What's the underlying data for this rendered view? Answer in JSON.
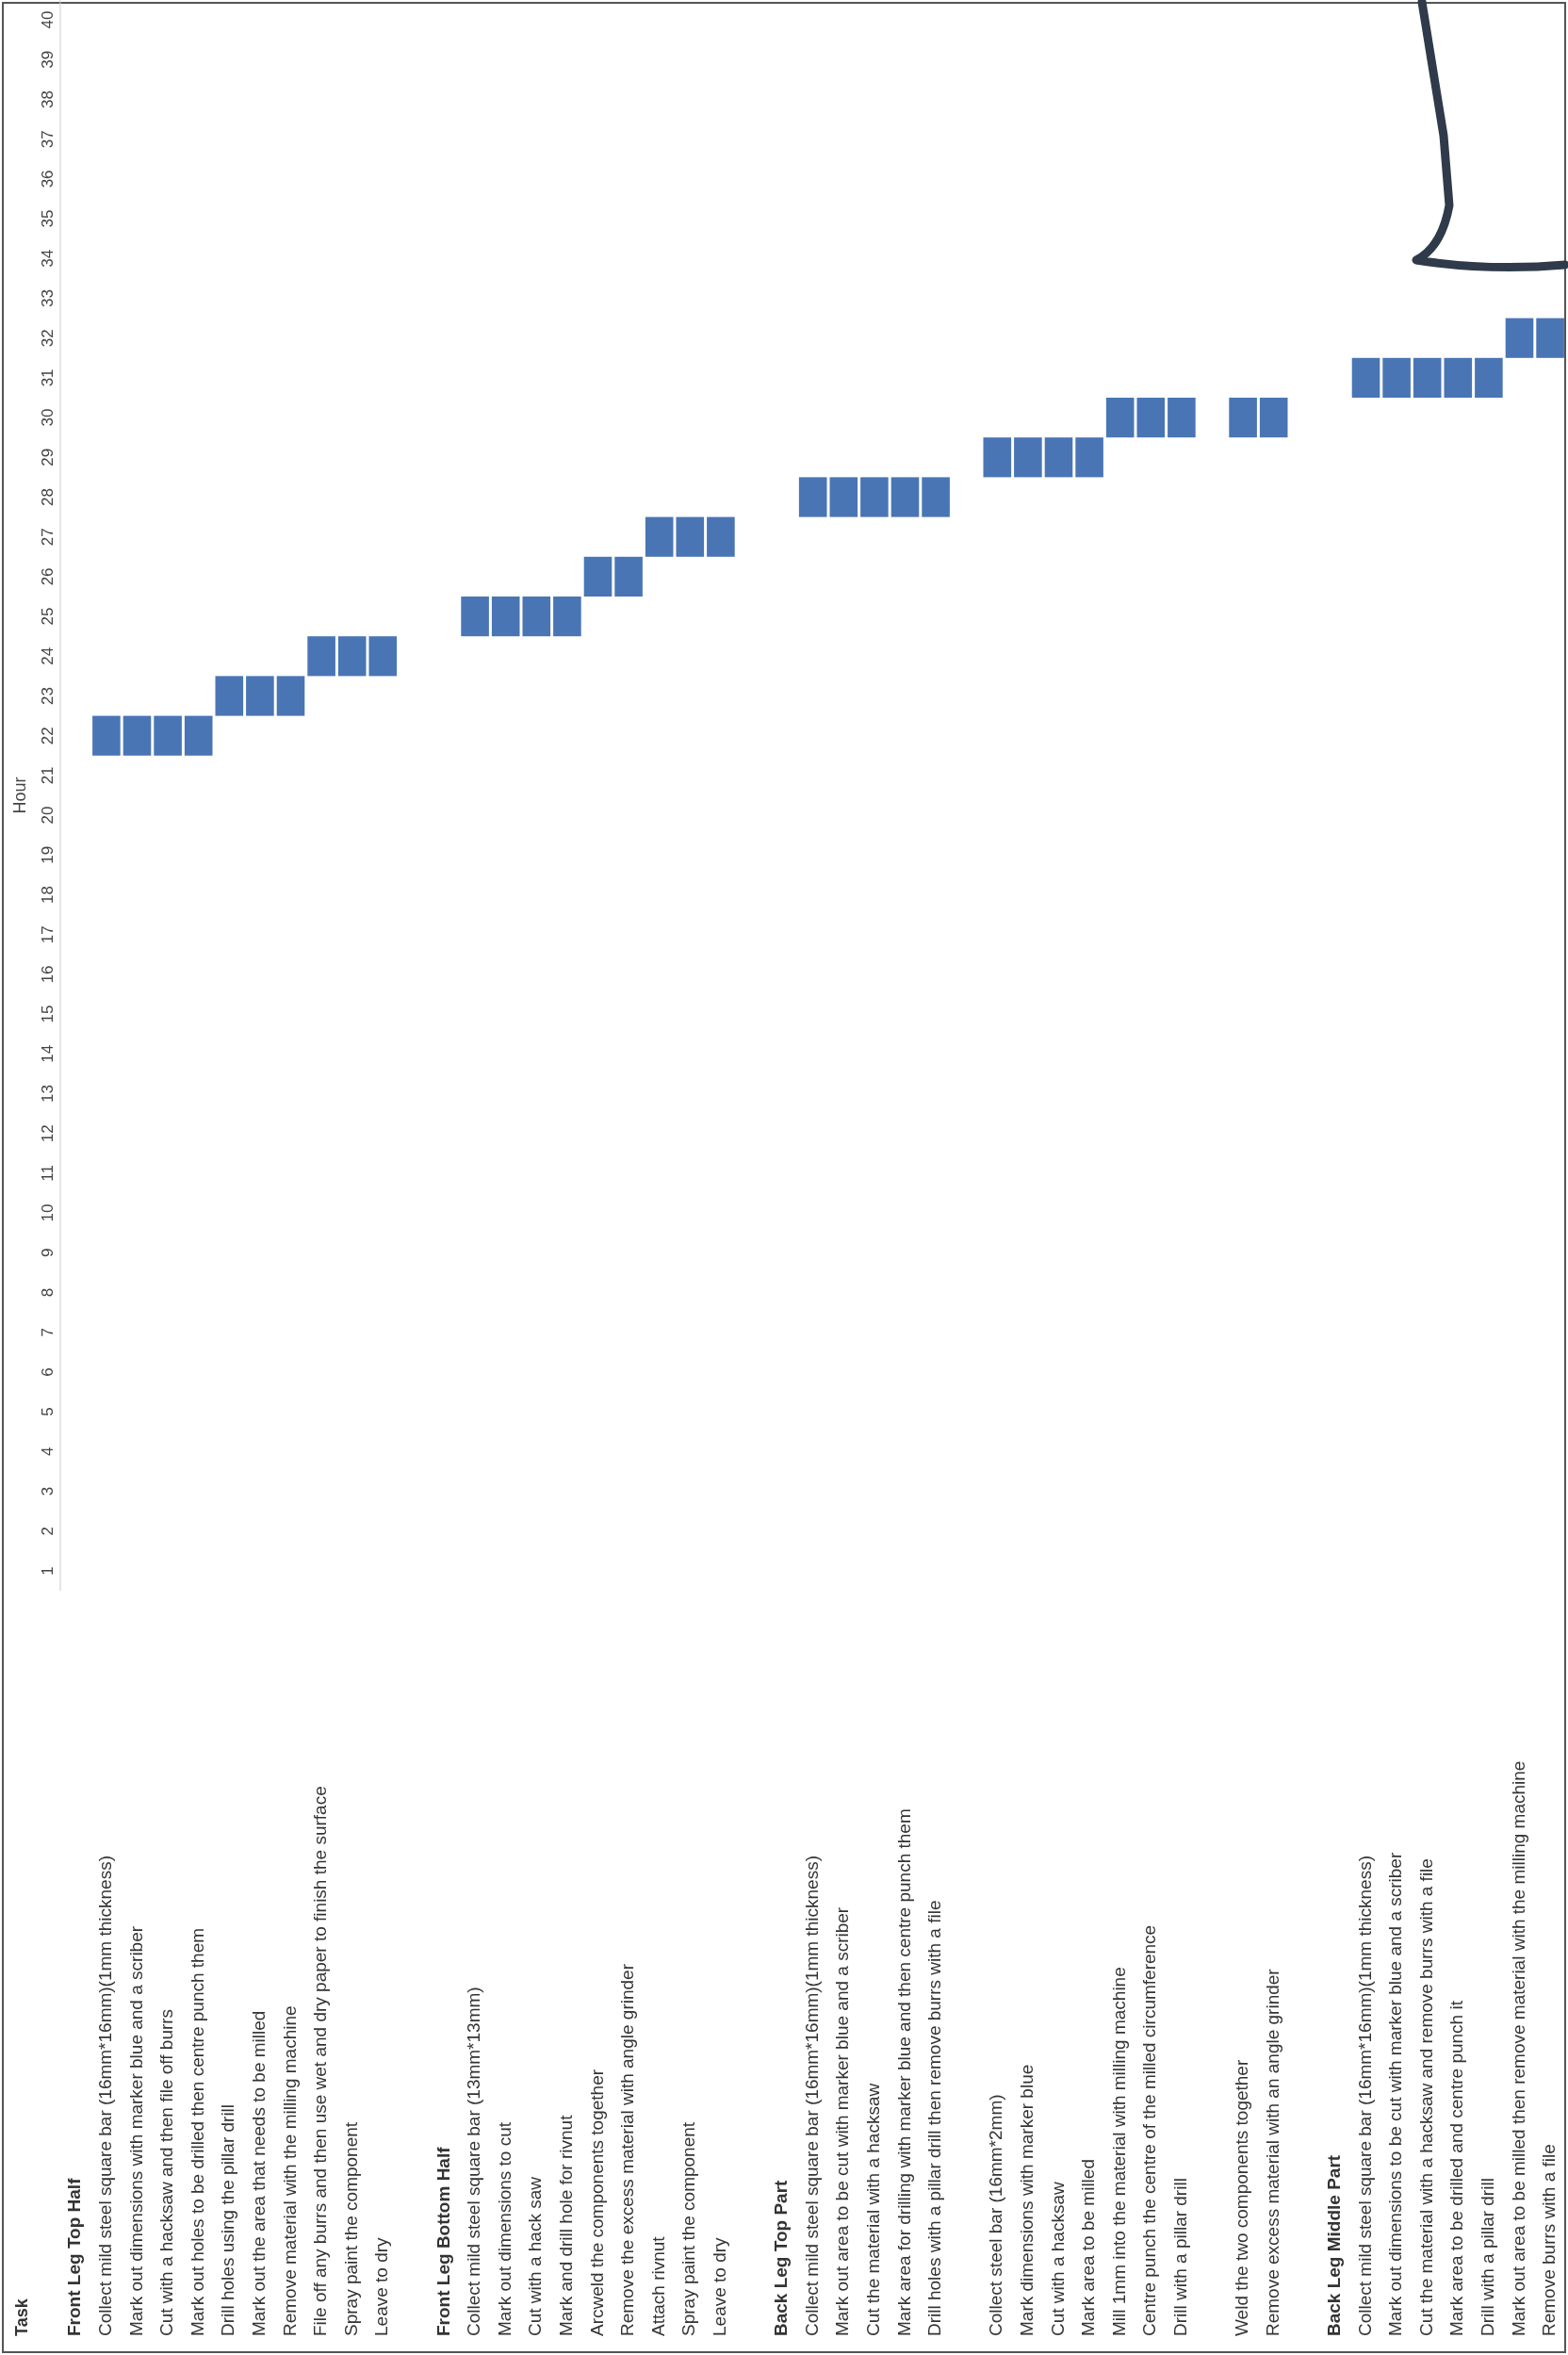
{
  "chart_data": {
    "type": "bar",
    "annotations": [
      "Task"
    ],
    "ylabel": "Hour",
    "color": "#4a75b5",
    "categories": [
      "Front Leg Top Half",
      "Collect mild steel square bar (16mm*16mm)(1mm thickness)",
      "Mark out dimensions with marker blue and a scriber",
      "Cut with a hacksaw and then file off burrs",
      "Mark out holes to be drilled then centre punch them",
      "Drill holes using the pillar drill",
      "Mark out the area that needs to be milled",
      "Remove material with the milling machine",
      "File off any burrs and then use wet and dry paper to finish the surface",
      "Spray paint the component",
      "Leave to dry",
      null,
      "Front Leg Bottom Half",
      "Collect mild steel square bar (13mm*13mm)",
      "Mark out dimensions to cut",
      "Cut with a hack saw",
      "Mark and drill hole for rivnut",
      "Arcweld the components together",
      "Remove the excess material with angle grinder",
      "Attach rivnut",
      "Spray paint the component",
      "Leave to dry",
      null,
      "Back Leg Top Part",
      "Collect mild steel square bar (16mm*16mm)(1mm thickness)",
      "Mark out area to be cut with marker blue and a scriber",
      "Cut the material with a hacksaw",
      "Mark area for drilling with marker blue and then centre punch them",
      "Drill holes with a pillar drill then remove burrs with a file",
      null,
      "Collect steel bar (16mm*2mm)",
      "Mark dimensions with marker blue",
      "Cut with a hacksaw",
      "Mark area to be milled",
      "Mill 1mm into the material with milling machine",
      "Centre punch the centre of the milled circumference",
      "Drill with a pillar drill",
      null,
      "Weld the two components together",
      "Remove excess material with an angle grinder",
      null,
      "Back Leg Middle Part",
      "Collect mild steel square bar (16mm*16mm)(1mm thickness)",
      "Mark out dimensions to be cut with marker blue and a scriber",
      "Cut the material with a hacksaw and remove burrs with a file",
      "Mark area to be drilled and centre punch it",
      "Drill with a pillar drill",
      "Mark out area to be milled then remove material with the milling machine",
      "Remove burrs with a file"
    ],
    "values": [
      null,
      1,
      1,
      1,
      1,
      1,
      1,
      1,
      1,
      1,
      1,
      null,
      null,
      1,
      1,
      1,
      1,
      1,
      1,
      1,
      1,
      1,
      null,
      null,
      1,
      1,
      1,
      1,
      1,
      null,
      1,
      1,
      1,
      1,
      1,
      1,
      1,
      null,
      1,
      1,
      null,
      null,
      1,
      1,
      1,
      1,
      1,
      1,
      1
    ],
    "base": [
      null,
      21.5,
      21.5,
      21.5,
      21.5,
      22.5,
      22.5,
      22.5,
      23.5,
      23.5,
      23.5,
      null,
      null,
      24.5,
      24.5,
      24.5,
      24.5,
      25.5,
      25.5,
      26.5,
      26.5,
      26.5,
      null,
      null,
      27.5,
      27.5,
      27.5,
      27.5,
      27.5,
      null,
      28.5,
      28.5,
      28.5,
      28.5,
      29.5,
      29.5,
      29.5,
      null,
      29.5,
      29.5,
      null,
      null,
      30.5,
      30.5,
      30.5,
      30.5,
      30.5,
      31.5,
      31.5
    ],
    "ylim": [
      0.5,
      40.5
    ],
    "yticks": [
      1,
      2,
      3,
      4,
      5,
      6,
      7,
      8,
      9,
      10,
      11,
      12,
      13,
      14,
      15,
      16,
      17,
      18,
      19,
      20,
      21,
      22,
      23,
      24,
      25,
      26,
      27,
      28,
      29,
      30,
      31,
      32,
      33,
      34,
      35,
      36,
      37,
      38,
      39,
      40
    ]
  }
}
